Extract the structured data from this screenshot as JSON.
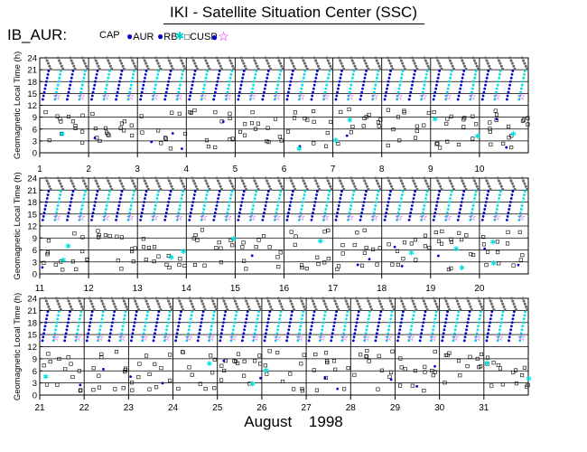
{
  "title": "IKI - Satellite Situation Center (SSC)",
  "series_name": "IB_AUR:",
  "legend": [
    {
      "label": "CAP",
      "symbol": "filled-dot",
      "color": "#0000cc"
    },
    {
      "label": "AUR",
      "symbol": "filled-dot",
      "color": "#0000cc"
    },
    {
      "label": "RB",
      "symbol": "asterisk",
      "color": "#00cccc"
    },
    {
      "label": "CUSP",
      "symbol": "open-square",
      "color": "#000000"
    },
    {
      "label": "",
      "symbol": "open-star",
      "color": "#dd00dd"
    }
  ],
  "colors": {
    "cap_aur": "#0000cc",
    "rb": "#00e0e0",
    "cusp_square": "#000000",
    "star": "#dd00dd",
    "high_track": "#666666"
  },
  "chart_data": [
    {
      "type": "scatter",
      "panel": 1,
      "ylabel": "Geomagnetic Local Time (h)",
      "xlabel": "",
      "yticks": [
        "0",
        "3",
        "6",
        "9",
        "12",
        "15",
        "18",
        "21",
        "24"
      ],
      "ylim": [
        0,
        24
      ],
      "xlim": [
        1,
        11
      ],
      "xtick_labels": [
        "1",
        "2",
        "3",
        "4",
        "5",
        "6",
        "7",
        "8",
        "9",
        "10"
      ],
      "passes_per_day": 4,
      "grid": true,
      "hline_hours": [
        3,
        6,
        9,
        12,
        15,
        18,
        21,
        24
      ]
    },
    {
      "type": "scatter",
      "panel": 2,
      "ylabel": "Geomagnetic Local Time (h)",
      "xlabel": "",
      "yticks": [
        "0",
        "3",
        "6",
        "9",
        "12",
        "15",
        "18",
        "21",
        "24"
      ],
      "ylim": [
        0,
        24
      ],
      "xlim": [
        11,
        21
      ],
      "xtick_labels": [
        "11",
        "12",
        "13",
        "14",
        "15",
        "16",
        "17",
        "18",
        "19",
        "20"
      ],
      "passes_per_day": 4,
      "grid": true,
      "hline_hours": [
        3,
        6,
        9,
        12,
        15,
        18,
        21,
        24
      ]
    },
    {
      "type": "scatter",
      "panel": 3,
      "ylabel": "Geomagnetic Local Time (h)",
      "xlabel": "August 1998",
      "yticks": [
        "0",
        "3",
        "6",
        "9",
        "12",
        "15",
        "18",
        "21",
        "24"
      ],
      "ylim": [
        0,
        24
      ],
      "xlim": [
        21,
        32
      ],
      "xtick_labels": [
        "21",
        "22",
        "23",
        "24",
        "25",
        "26",
        "27",
        "28",
        "29",
        "30",
        "31"
      ],
      "passes_per_day": 4,
      "grid": true,
      "hline_hours": [
        3,
        6,
        9,
        12,
        15,
        18,
        21,
        24
      ]
    }
  ]
}
